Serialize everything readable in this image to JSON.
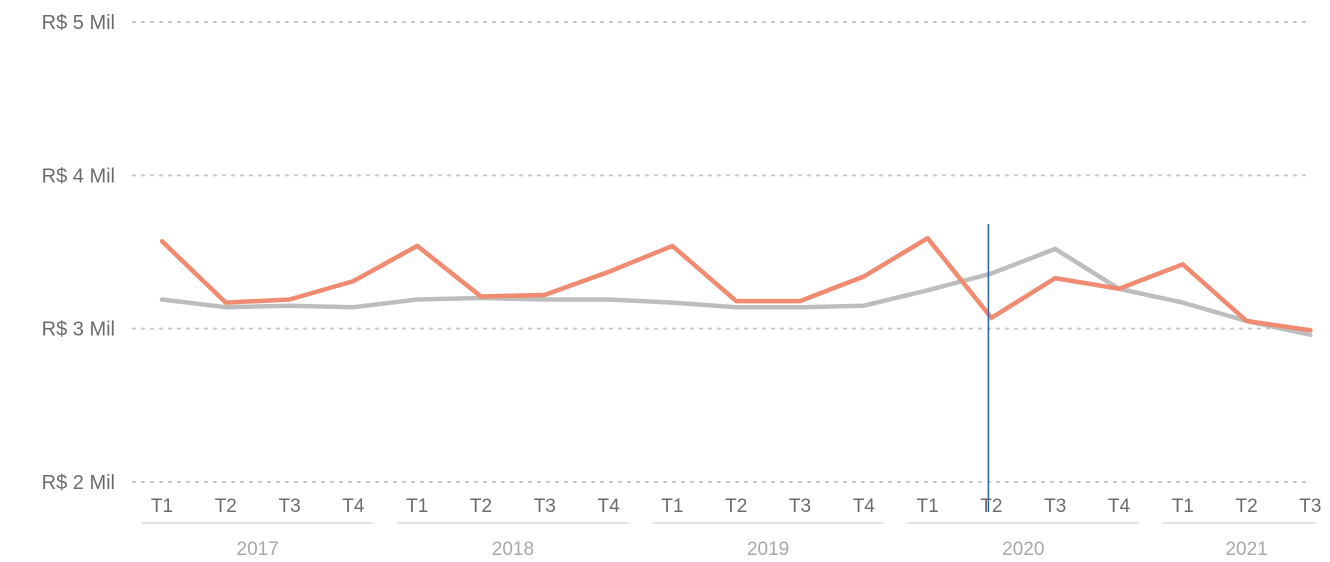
{
  "chart_data": {
    "type": "line",
    "y_ticks": [
      "R$ 5 Mil",
      "R$ 4 Mil",
      "R$ 3 Mil",
      "R$ 2 Mil"
    ],
    "y_tick_values": [
      5,
      4,
      3,
      2
    ],
    "ylim": [
      2,
      5
    ],
    "grid": true,
    "legend": "none",
    "x_quarters": [
      "T1",
      "T2",
      "T3",
      "T4",
      "T1",
      "T2",
      "T3",
      "T4",
      "T1",
      "T2",
      "T3",
      "T4",
      "T1",
      "T2",
      "T3",
      "T4",
      "T1",
      "T2",
      "T3"
    ],
    "x_years": [
      {
        "label": "2017",
        "quarters": 4
      },
      {
        "label": "2018",
        "quarters": 4
      },
      {
        "label": "2019",
        "quarters": 4
      },
      {
        "label": "2020",
        "quarters": 4
      },
      {
        "label": "2021",
        "quarters": 3
      }
    ],
    "series": [
      {
        "color": "#f08a70",
        "values": [
          3.57,
          3.17,
          3.19,
          3.31,
          3.54,
          3.21,
          3.22,
          3.37,
          3.54,
          3.18,
          3.18,
          3.34,
          3.59,
          3.07,
          3.33,
          3.26,
          3.42,
          3.05,
          2.99
        ]
      },
      {
        "color": "#bdbdbd",
        "values": [
          3.19,
          3.14,
          3.15,
          3.14,
          3.19,
          3.2,
          3.19,
          3.19,
          3.17,
          3.14,
          3.14,
          3.15,
          3.25,
          3.36,
          3.52,
          3.26,
          3.17,
          3.05,
          2.96
        ]
      }
    ],
    "marker_line": {
      "x_index": 13,
      "color": "#2e5fa8"
    }
  }
}
